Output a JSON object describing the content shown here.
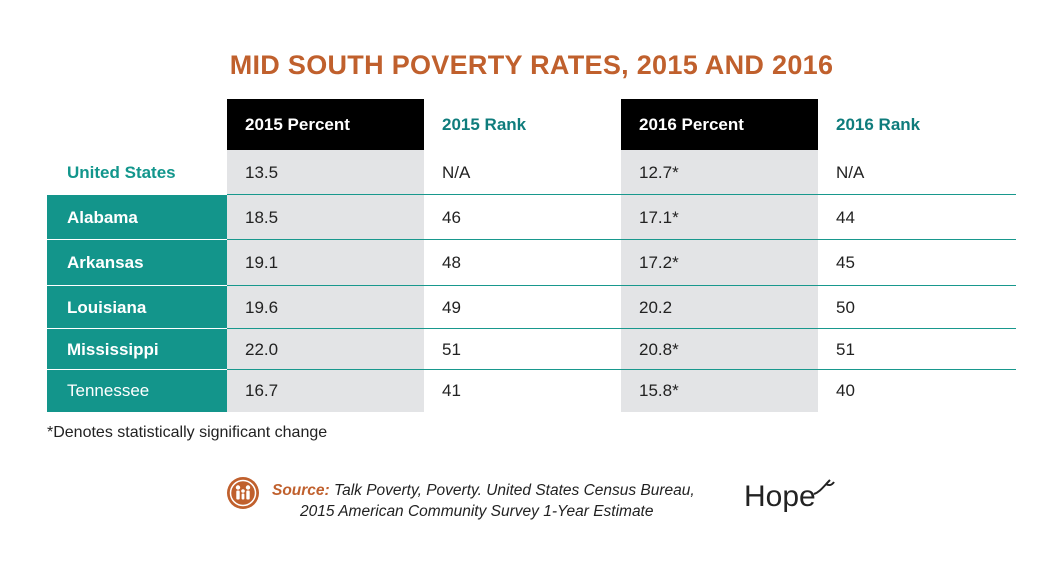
{
  "title": "MID SOUTH POVERTY RATES, 2015 AND 2016",
  "chart_data": {
    "type": "table",
    "title": "MID SOUTH POVERTY RATES, 2015 AND 2016",
    "columns": [
      "",
      "2015 Percent",
      "2015 Rank",
      "2016 Percent",
      "2016 Rank"
    ],
    "rows": [
      [
        "United States",
        "13.5",
        "N/A",
        "12.7*",
        "N/A"
      ],
      [
        "Alabama",
        "18.5",
        "46",
        "17.1*",
        "44"
      ],
      [
        "Arkansas",
        "19.1",
        "48",
        "17.2*",
        "45"
      ],
      [
        "Louisiana",
        "19.6",
        "49",
        "20.2",
        "50"
      ],
      [
        "Mississippi",
        "22.0",
        "51",
        "20.8*",
        "51"
      ],
      [
        "Tennessee",
        "16.7",
        "41",
        "15.8*",
        "40"
      ]
    ]
  },
  "note": "*Denotes statistically significant change",
  "source": {
    "label": "Source:",
    "line1": " Talk Poverty, Poverty. United States Census Bureau,",
    "line2": "2015 American Community Survey 1-Year Estimate"
  },
  "logo": {
    "text": "Hope",
    "icon": "family-icon",
    "color": "#c0602d"
  }
}
